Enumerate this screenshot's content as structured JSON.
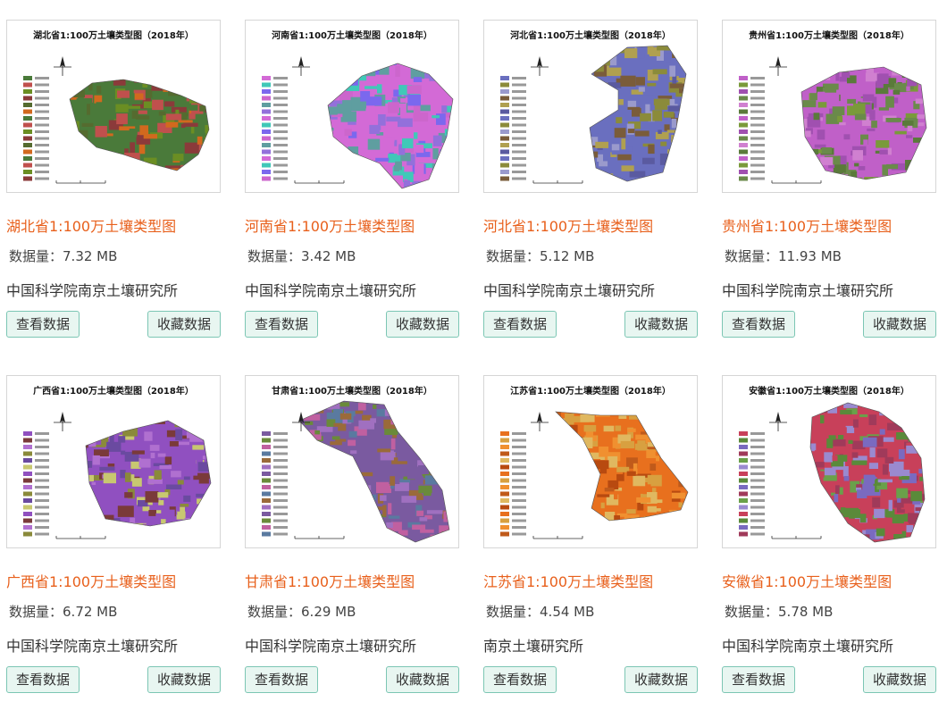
{
  "size_label": "数据量：",
  "view_label": "查看数据",
  "fav_label": "收藏数据",
  "cards": [
    {
      "name": "湖北省1:100万土壤类型图",
      "size": "7.32 MB",
      "org": "中国科学院南京土壤研究所",
      "thumb_title": "湖北省1:100万土壤类型图（2018年）",
      "palette": [
        "#4a7a3a",
        "#c0504d",
        "#6b8e23",
        "#8b3a3a",
        "#556b2f",
        "#d2691e"
      ]
    },
    {
      "name": "河南省1:100万土壤类型图",
      "size": "3.42 MB",
      "org": "中国科学院南京土壤研究所",
      "thumb_title": "河南省1:100万土壤类型图（2018年）",
      "palette": [
        "#d36ad6",
        "#40c8b8",
        "#7b68ee",
        "#cc66cc",
        "#5f9ea0",
        "#9370db"
      ]
    },
    {
      "name": "河北省1:100万土壤类型图",
      "size": "5.12 MB",
      "org": "中国科学院南京土壤研究所",
      "thumb_title": "河北省1:100万土壤类型图（2018年）",
      "palette": [
        "#6a6fbf",
        "#8b8b3a",
        "#9a9acc",
        "#7a5c3a",
        "#b0a050",
        "#5a5aa0"
      ]
    },
    {
      "name": "贵州省1:100万土壤类型图",
      "size": "11.93 MB",
      "org": "中国科学院南京土壤研究所",
      "thumb_title": "贵州省1:100万土壤类型图（2018年）",
      "palette": [
        "#c060c8",
        "#7a9a3a",
        "#a050b0",
        "#6a8a4a",
        "#d080d0",
        "#5a7a3a"
      ]
    },
    {
      "name": "广西省1:100万土壤类型图",
      "size": "6.72 MB",
      "org": "中国科学院南京土壤研究所",
      "thumb_title": "广西省1:100万土壤类型图（2018年）",
      "palette": [
        "#9050c0",
        "#7a3a3a",
        "#b070d0",
        "#8a8a3a",
        "#6a4aa0",
        "#c8c870"
      ]
    },
    {
      "name": "甘肃省1:100万土壤类型图",
      "size": "6.29 MB",
      "org": "中国科学院南京土壤研究所",
      "thumb_title": "甘肃省1:100万土壤类型图（2018年）",
      "palette": [
        "#7a5aa0",
        "#6a8a3a",
        "#c060a0",
        "#5a7aa0",
        "#9a6a3a",
        "#a070c0"
      ]
    },
    {
      "name": "江苏省1:100万土壤类型图",
      "size": "4.54 MB",
      "org": "南京土壤研究所",
      "thumb_title": "江苏省1:100万土壤类型图（2018年）",
      "palette": [
        "#e8701e",
        "#d8a040",
        "#f09030",
        "#c05a1a",
        "#e0b860",
        "#b84a10"
      ]
    },
    {
      "name": "安徽省1:100万土壤类型图",
      "size": "5.78 MB",
      "org": "中国科学院南京土壤研究所",
      "thumb_title": "安徽省1:100万土壤类型图（2018年）",
      "palette": [
        "#c8405a",
        "#5a8a3a",
        "#7a6ac0",
        "#a03a5a",
        "#6aa04a",
        "#9a8ad0"
      ]
    }
  ]
}
